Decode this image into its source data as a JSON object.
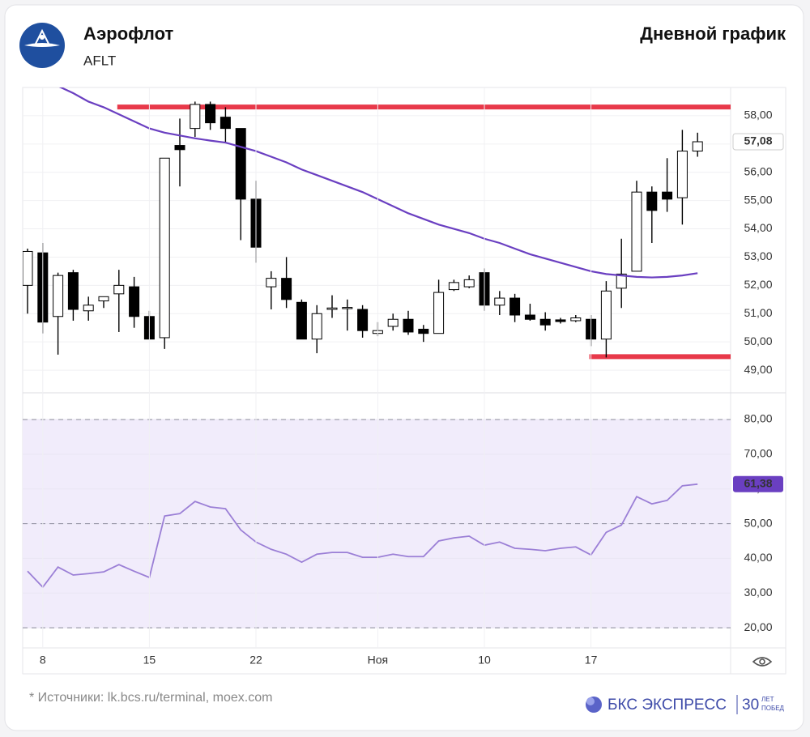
{
  "header": {
    "company": "Аэрофлот",
    "ticker": "AFLT",
    "chart_label": "Дневной график"
  },
  "chart_data": [
    {
      "type": "candlestick",
      "open": [
        52.0,
        53.15,
        50.9,
        52.45,
        51.1,
        51.45,
        51.7,
        51.95,
        50.9,
        50.15,
        56.95,
        57.55,
        58.4,
        57.95,
        57.55,
        55.05,
        51.95,
        52.25,
        51.4,
        50.1,
        51.15,
        51.18,
        51.15,
        50.3,
        50.55,
        50.8,
        50.45,
        50.3,
        51.85,
        51.95,
        52.45,
        51.3,
        51.55,
        50.95,
        50.8,
        50.78,
        50.75,
        50.8,
        50.1,
        51.9,
        52.5,
        55.3,
        55.3,
        55.1,
        56.75
      ],
      "high": [
        53.3,
        53.5,
        52.45,
        52.55,
        51.6,
        51.6,
        52.55,
        52.3,
        51.1,
        56.5,
        57.9,
        58.5,
        58.5,
        58.3,
        57.55,
        55.7,
        52.5,
        53.0,
        51.5,
        51.3,
        51.65,
        51.5,
        51.3,
        50.7,
        51.0,
        51.1,
        50.6,
        52.2,
        52.2,
        52.35,
        52.6,
        51.8,
        51.7,
        51.35,
        51.05,
        50.85,
        50.95,
        50.95,
        52.15,
        53.65,
        55.7,
        55.5,
        56.5,
        57.5,
        57.4
      ],
      "low": [
        51.0,
        50.3,
        49.55,
        50.75,
        50.75,
        51.2,
        50.35,
        50.5,
        50.1,
        49.75,
        55.5,
        57.25,
        57.5,
        57.05,
        53.6,
        52.8,
        51.15,
        51.2,
        50.1,
        49.6,
        50.85,
        50.4,
        50.15,
        50.2,
        50.4,
        50.25,
        50.0,
        50.3,
        51.8,
        51.9,
        51.1,
        50.95,
        50.7,
        50.75,
        50.4,
        50.65,
        50.7,
        49.85,
        49.45,
        51.2,
        52.5,
        53.5,
        54.6,
        54.15,
        56.55
      ],
      "close": [
        53.2,
        50.7,
        52.35,
        51.15,
        51.3,
        51.6,
        52.0,
        50.9,
        50.1,
        56.5,
        56.8,
        58.4,
        57.75,
        57.55,
        55.05,
        53.35,
        52.25,
        51.5,
        50.1,
        51.0,
        51.2,
        51.22,
        50.4,
        50.4,
        50.8,
        50.35,
        50.3,
        51.75,
        52.1,
        52.2,
        51.3,
        51.55,
        50.95,
        50.8,
        50.6,
        50.72,
        50.85,
        50.1,
        51.8,
        52.4,
        55.3,
        54.65,
        55.05,
        56.75,
        57.08
      ],
      "up_color": "#ffffff",
      "down_color": "#000000",
      "ma": {
        "color": "#6a3fc1",
        "values": [
          null,
          null,
          59.05,
          58.8,
          58.5,
          58.3,
          58.05,
          57.8,
          57.55,
          57.4,
          57.3,
          57.2,
          57.12,
          57.05,
          56.9,
          56.75,
          56.55,
          56.35,
          56.1,
          55.9,
          55.7,
          55.5,
          55.3,
          55.05,
          54.8,
          54.55,
          54.35,
          54.15,
          54.0,
          53.85,
          53.65,
          53.5,
          53.3,
          53.1,
          52.95,
          52.8,
          52.65,
          52.5,
          52.4,
          52.35,
          52.3,
          52.28,
          52.3,
          52.35,
          52.43
        ]
      },
      "levels": [
        {
          "value": 58.31,
          "from": 6,
          "color": "#e8394a"
        },
        {
          "value": 49.48,
          "from": 37,
          "color": "#e8394a"
        }
      ],
      "last_value": {
        "value": 57.08,
        "label": "57,08"
      },
      "ylim": [
        48.2,
        59.0
      ],
      "yticks": [
        {
          "value": 49,
          "label": "49,00"
        },
        {
          "value": 50,
          "label": "50,00"
        },
        {
          "value": 51,
          "label": "51,00"
        },
        {
          "value": 52,
          "label": "52,00"
        },
        {
          "value": 53,
          "label": "53,00"
        },
        {
          "value": 54,
          "label": "54,00"
        },
        {
          "value": 55,
          "label": "55,00"
        },
        {
          "value": 56,
          "label": "56,00"
        },
        {
          "value": 57,
          "label": "57,00"
        },
        {
          "value": 58,
          "label": "58,00"
        }
      ],
      "grid": true
    },
    {
      "type": "line",
      "categories": [
        null,
        "8",
        null,
        null,
        null,
        null,
        null,
        null,
        "15",
        null,
        null,
        null,
        null,
        null,
        null,
        "22",
        null,
        null,
        null,
        null,
        null,
        null,
        null,
        "Ноя",
        null,
        null,
        null,
        null,
        null,
        null,
        "10",
        null,
        null,
        null,
        null,
        null,
        null,
        "17",
        null,
        null,
        null,
        null,
        null,
        null,
        null
      ],
      "values": [
        36.3,
        31.7,
        37.5,
        35.2,
        35.6,
        36.1,
        38.2,
        36.3,
        34.5,
        52.2,
        52.9,
        56.4,
        54.8,
        54.3,
        48.2,
        44.7,
        42.6,
        41.2,
        38.9,
        41.2,
        41.7,
        41.7,
        40.3,
        40.3,
        41.2,
        40.5,
        40.5,
        45.0,
        45.9,
        46.4,
        43.8,
        44.7,
        42.9,
        42.6,
        42.2,
        42.9,
        43.3,
        41.0,
        47.5,
        49.6,
        57.8,
        55.7,
        56.7,
        60.9,
        61.38
      ],
      "color": "#9b7fd6",
      "band": {
        "from": 20,
        "to": 80,
        "color": "#f1ecfb"
      },
      "dashed_levels": [
        20,
        50,
        80
      ],
      "last_value": {
        "value": 61.38,
        "label": "61,38"
      },
      "ylim": [
        14.2,
        87.7
      ],
      "yticks": [
        {
          "value": 20,
          "label": "20,00"
        },
        {
          "value": 30,
          "label": "30,00"
        },
        {
          "value": 40,
          "label": "40,00"
        },
        {
          "value": 50,
          "label": "50,00"
        },
        {
          "value": 60,
          "label": "60,00"
        },
        {
          "value": 70,
          "label": "70,00"
        },
        {
          "value": 80,
          "label": "80,00"
        }
      ],
      "grid": true
    }
  ],
  "footer": {
    "source": "* Источники: lk.bcs.ru/terminal, moex.com",
    "brand": "БКС ЭКСПРЕСС",
    "years": "30",
    "years_word1": "ЛЕТ",
    "years_word2": "ПОБЕД"
  }
}
